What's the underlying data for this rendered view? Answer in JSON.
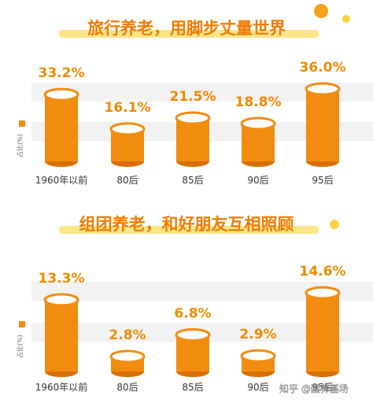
{
  "chart_data": [
    {
      "type": "cylinder",
      "title": "旅行养老，用脚步丈量世界",
      "y_label": "占比(%)",
      "categories": [
        "1960年以前",
        "80后",
        "85后",
        "90后",
        "95后"
      ],
      "values": [
        33.2,
        16.1,
        21.5,
        18.8,
        36.0
      ],
      "value_labels": [
        "33.2%",
        "16.1%",
        "21.5%",
        "18.8%",
        "36.0%"
      ],
      "color": "#f28c0f"
    },
    {
      "type": "cylinder",
      "title": "组团养老，和好朋友互相照顾",
      "y_label": "占比(%)",
      "categories": [
        "1960年以前",
        "80后",
        "85后",
        "90后",
        "95后"
      ],
      "values": [
        13.3,
        2.8,
        6.8,
        2.9,
        14.6
      ],
      "value_labels": [
        "13.3%",
        "2.8%",
        "6.8%",
        "2.9%",
        "14.6%"
      ],
      "color": "#f28c0f"
    }
  ],
  "watermark": "知乎 @国养基场"
}
